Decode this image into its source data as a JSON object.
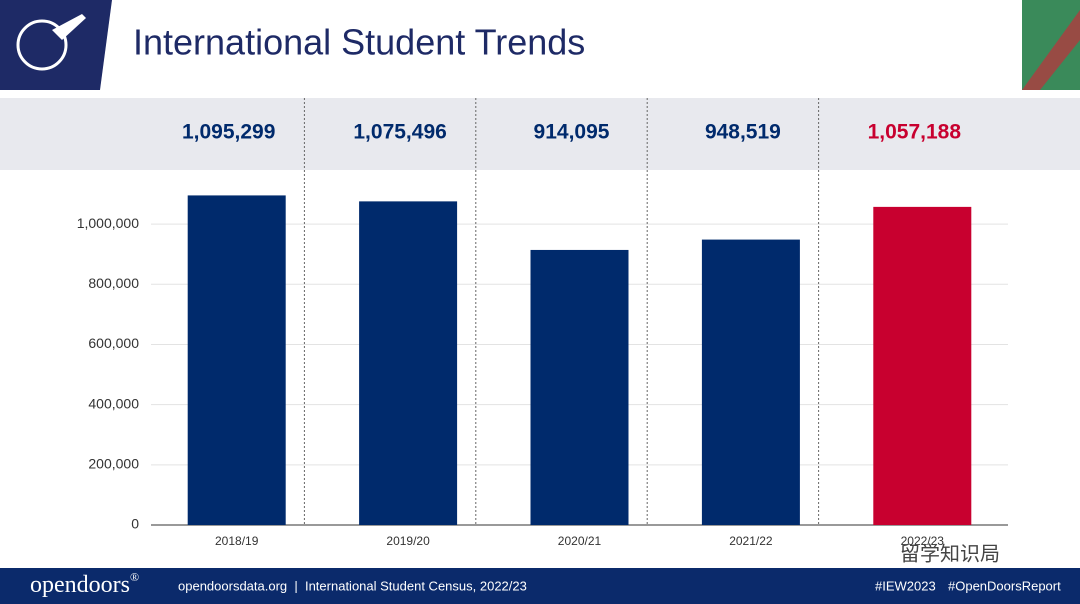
{
  "header": {
    "title": "International Student Trends"
  },
  "chart_data": {
    "type": "bar",
    "categories": [
      "2018/19",
      "2019/20",
      "2020/21",
      "2021/22",
      "2022/23"
    ],
    "values": [
      1095299,
      1075496,
      914095,
      948519,
      1057188
    ],
    "value_labels": [
      "1,095,299",
      "1,075,496",
      "914,095",
      "948,519",
      "1,057,188"
    ],
    "colors": [
      "#002a6c",
      "#002a6c",
      "#002a6c",
      "#002a6c",
      "#c8002f"
    ],
    "ylim": [
      0,
      1100000
    ],
    "yticks": [
      0,
      {
        "value": 200000,
        "label": "200,000"
      },
      {
        "value": 400000,
        "label": "400,000"
      },
      {
        "value": 600000,
        "label": "600,000"
      },
      {
        "value": 800000,
        "label": "800,000"
      },
      {
        "value": 1000000,
        "label": "1,000,000"
      }
    ],
    "grid": true
  },
  "footer": {
    "logo": "opendoors",
    "logo_mark": "®",
    "source": "opendoorsdata.org  |  International Student Census, 2022/23",
    "tags": [
      "#IEW2023",
      "#OpenDoorsReport"
    ]
  },
  "watermark": "留学知识局"
}
